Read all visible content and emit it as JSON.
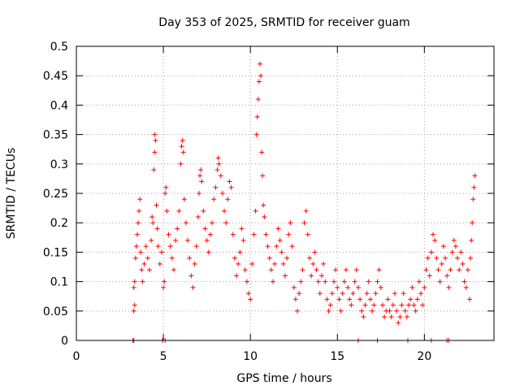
{
  "chart_data": {
    "type": "scatter",
    "title": "Day 353 of 2025, SRMTID for receiver guam",
    "xlabel": "GPS time / hours",
    "ylabel": "SRMTID / TECUs",
    "xlim": [
      0,
      24
    ],
    "ylim": [
      0,
      0.5
    ],
    "xticks": [
      0,
      5,
      10,
      15,
      20
    ],
    "xtick_labels": [
      "0",
      "5",
      "10",
      "15",
      "20"
    ],
    "yticks": [
      0,
      0.05,
      0.1,
      0.15,
      0.2,
      0.25,
      0.3,
      0.35,
      0.4,
      0.45,
      0.5
    ],
    "ytick_labels": [
      "0",
      "0.05",
      "0.1",
      "0.15",
      "0.2",
      "0.25",
      "0.3",
      "0.35",
      "0.4",
      "0.45",
      "0.5"
    ],
    "grid": true,
    "marker": "+",
    "series": [
      {
        "name": "SRMTID",
        "color": "#ff0000",
        "points": [
          [
            3.25,
            0.0
          ],
          [
            3.3,
            0.0
          ],
          [
            4.95,
            0.0
          ],
          [
            5.1,
            0.0
          ],
          [
            17.3,
            0.0
          ],
          [
            19.05,
            0.0
          ],
          [
            20.4,
            0.0
          ],
          [
            21.3,
            0.0
          ],
          [
            21.4,
            0.0
          ],
          [
            16.2,
            0.0
          ],
          [
            3.3,
            0.05
          ],
          [
            3.35,
            0.06
          ],
          [
            3.3,
            0.09
          ],
          [
            3.35,
            0.1
          ],
          [
            3.4,
            0.14
          ],
          [
            3.45,
            0.16
          ],
          [
            3.5,
            0.18
          ],
          [
            3.55,
            0.2
          ],
          [
            3.6,
            0.22
          ],
          [
            3.65,
            0.24
          ],
          [
            3.7,
            0.15
          ],
          [
            3.75,
            0.12
          ],
          [
            3.8,
            0.1
          ],
          [
            3.9,
            0.13
          ],
          [
            4.0,
            0.16
          ],
          [
            4.1,
            0.14
          ],
          [
            4.2,
            0.12
          ],
          [
            4.3,
            0.17
          ],
          [
            4.35,
            0.21
          ],
          [
            4.4,
            0.2
          ],
          [
            4.45,
            0.29
          ],
          [
            4.5,
            0.32
          ],
          [
            4.5,
            0.35
          ],
          [
            4.55,
            0.34
          ],
          [
            4.6,
            0.23
          ],
          [
            4.65,
            0.19
          ],
          [
            4.7,
            0.16
          ],
          [
            4.8,
            0.13
          ],
          [
            4.9,
            0.15
          ],
          [
            5.0,
            0.09
          ],
          [
            5.05,
            0.1
          ],
          [
            5.1,
            0.25
          ],
          [
            5.15,
            0.26
          ],
          [
            5.2,
            0.22
          ],
          [
            5.3,
            0.18
          ],
          [
            5.4,
            0.16
          ],
          [
            5.5,
            0.14
          ],
          [
            5.6,
            0.12
          ],
          [
            5.7,
            0.17
          ],
          [
            5.8,
            0.19
          ],
          [
            5.9,
            0.22
          ],
          [
            6.0,
            0.3
          ],
          [
            6.05,
            0.33
          ],
          [
            6.1,
            0.34
          ],
          [
            6.15,
            0.32
          ],
          [
            6.2,
            0.24
          ],
          [
            6.3,
            0.2
          ],
          [
            6.4,
            0.17
          ],
          [
            6.5,
            0.14
          ],
          [
            6.6,
            0.11
          ],
          [
            6.7,
            0.09
          ],
          [
            6.8,
            0.13
          ],
          [
            6.9,
            0.16
          ],
          [
            7.0,
            0.21
          ],
          [
            7.05,
            0.25
          ],
          [
            7.1,
            0.28
          ],
          [
            7.15,
            0.29
          ],
          [
            7.2,
            0.27
          ],
          [
            7.3,
            0.22
          ],
          [
            7.4,
            0.19
          ],
          [
            7.5,
            0.17
          ],
          [
            7.6,
            0.15
          ],
          [
            7.7,
            0.18
          ],
          [
            7.8,
            0.2
          ],
          [
            7.9,
            0.24
          ],
          [
            8.0,
            0.26
          ],
          [
            8.1,
            0.29
          ],
          [
            8.15,
            0.31
          ],
          [
            8.2,
            0.3
          ],
          [
            8.3,
            0.28
          ],
          [
            8.4,
            0.25
          ],
          [
            8.5,
            0.22
          ],
          [
            8.6,
            0.2
          ],
          [
            8.7,
            0.24
          ],
          [
            8.8,
            0.27
          ],
          [
            8.9,
            0.26
          ],
          [
            9.0,
            0.18
          ],
          [
            9.1,
            0.14
          ],
          [
            9.2,
            0.11
          ],
          [
            9.3,
            0.13
          ],
          [
            9.4,
            0.15
          ],
          [
            9.5,
            0.19
          ],
          [
            9.6,
            0.17
          ],
          [
            9.7,
            0.12
          ],
          [
            9.8,
            0.1
          ],
          [
            9.9,
            0.08
          ],
          [
            10.0,
            0.07
          ],
          [
            10.1,
            0.13
          ],
          [
            10.2,
            0.18
          ],
          [
            10.3,
            0.22
          ],
          [
            10.35,
            0.35
          ],
          [
            10.4,
            0.38
          ],
          [
            10.45,
            0.41
          ],
          [
            10.5,
            0.44
          ],
          [
            10.55,
            0.47
          ],
          [
            10.6,
            0.45
          ],
          [
            10.65,
            0.32
          ],
          [
            10.7,
            0.28
          ],
          [
            10.75,
            0.23
          ],
          [
            10.8,
            0.21
          ],
          [
            10.9,
            0.18
          ],
          [
            11.0,
            0.16
          ],
          [
            11.1,
            0.14
          ],
          [
            11.2,
            0.12
          ],
          [
            11.3,
            0.1
          ],
          [
            11.4,
            0.13
          ],
          [
            11.5,
            0.16
          ],
          [
            11.6,
            0.19
          ],
          [
            11.7,
            0.17
          ],
          [
            11.8,
            0.15
          ],
          [
            11.9,
            0.13
          ],
          [
            12.0,
            0.11
          ],
          [
            12.1,
            0.14
          ],
          [
            12.2,
            0.18
          ],
          [
            12.3,
            0.2
          ],
          [
            12.4,
            0.16
          ],
          [
            12.5,
            0.09
          ],
          [
            12.6,
            0.07
          ],
          [
            12.7,
            0.05
          ],
          [
            12.8,
            0.08
          ],
          [
            12.9,
            0.1
          ],
          [
            13.0,
            0.12
          ],
          [
            13.1,
            0.2
          ],
          [
            13.2,
            0.22
          ],
          [
            13.3,
            0.18
          ],
          [
            13.4,
            0.14
          ],
          [
            13.5,
            0.11
          ],
          [
            13.6,
            0.13
          ],
          [
            13.7,
            0.15
          ],
          [
            13.8,
            0.12
          ],
          [
            13.9,
            0.1
          ],
          [
            14.0,
            0.08
          ],
          [
            14.1,
            0.11
          ],
          [
            14.2,
            0.13
          ],
          [
            14.3,
            0.1
          ],
          [
            14.4,
            0.07
          ],
          [
            14.5,
            0.05
          ],
          [
            14.6,
            0.06
          ],
          [
            14.7,
            0.08
          ],
          [
            14.8,
            0.1
          ],
          [
            14.9,
            0.12
          ],
          [
            15.0,
            0.09
          ],
          [
            15.1,
            0.07
          ],
          [
            15.2,
            0.05
          ],
          [
            15.3,
            0.08
          ],
          [
            15.4,
            0.1
          ],
          [
            15.5,
            0.12
          ],
          [
            15.6,
            0.09
          ],
          [
            15.7,
            0.07
          ],
          [
            15.8,
            0.06
          ],
          [
            15.9,
            0.08
          ],
          [
            16.0,
            0.1
          ],
          [
            16.1,
            0.12
          ],
          [
            16.2,
            0.09
          ],
          [
            16.3,
            0.07
          ],
          [
            16.4,
            0.05
          ],
          [
            16.5,
            0.04
          ],
          [
            16.6,
            0.06
          ],
          [
            16.7,
            0.08
          ],
          [
            16.8,
            0.1
          ],
          [
            16.9,
            0.07
          ],
          [
            17.0,
            0.05
          ],
          [
            17.1,
            0.06
          ],
          [
            17.2,
            0.08
          ],
          [
            17.3,
            0.1
          ],
          [
            17.4,
            0.12
          ],
          [
            17.5,
            0.09
          ],
          [
            17.6,
            0.06
          ],
          [
            17.7,
            0.04
          ],
          [
            17.8,
            0.05
          ],
          [
            17.9,
            0.07
          ],
          [
            18.0,
            0.05
          ],
          [
            18.1,
            0.04
          ],
          [
            18.2,
            0.06
          ],
          [
            18.3,
            0.08
          ],
          [
            18.4,
            0.05
          ],
          [
            18.5,
            0.03
          ],
          [
            18.6,
            0.04
          ],
          [
            18.7,
            0.06
          ],
          [
            18.8,
            0.08
          ],
          [
            18.9,
            0.05
          ],
          [
            19.0,
            0.04
          ],
          [
            19.1,
            0.06
          ],
          [
            19.2,
            0.07
          ],
          [
            19.3,
            0.09
          ],
          [
            19.4,
            0.06
          ],
          [
            19.5,
            0.05
          ],
          [
            19.6,
            0.07
          ],
          [
            19.7,
            0.1
          ],
          [
            19.8,
            0.08
          ],
          [
            19.9,
            0.06
          ],
          [
            20.0,
            0.09
          ],
          [
            20.1,
            0.12
          ],
          [
            20.2,
            0.14
          ],
          [
            20.3,
            0.11
          ],
          [
            20.4,
            0.15
          ],
          [
            20.5,
            0.18
          ],
          [
            20.6,
            0.17
          ],
          [
            20.7,
            0.14
          ],
          [
            20.8,
            0.12
          ],
          [
            20.9,
            0.1
          ],
          [
            21.0,
            0.13
          ],
          [
            21.1,
            0.16
          ],
          [
            21.2,
            0.14
          ],
          [
            21.3,
            0.11
          ],
          [
            21.4,
            0.09
          ],
          [
            21.5,
            0.12
          ],
          [
            21.6,
            0.15
          ],
          [
            21.7,
            0.17
          ],
          [
            21.8,
            0.16
          ],
          [
            21.9,
            0.14
          ],
          [
            22.0,
            0.12
          ],
          [
            22.1,
            0.15
          ],
          [
            22.2,
            0.13
          ],
          [
            22.3,
            0.1
          ],
          [
            22.4,
            0.09
          ],
          [
            22.5,
            0.12
          ],
          [
            22.6,
            0.07
          ],
          [
            22.65,
            0.14
          ],
          [
            22.7,
            0.17
          ],
          [
            22.75,
            0.2
          ],
          [
            22.8,
            0.24
          ],
          [
            22.85,
            0.26
          ],
          [
            22.9,
            0.28
          ]
        ]
      }
    ]
  }
}
